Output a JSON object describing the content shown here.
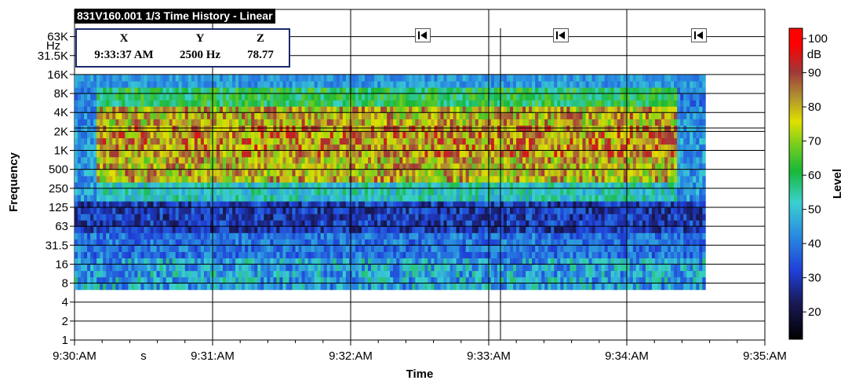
{
  "title": "831V160.001 1/3 Time History - Linear",
  "cursor": {
    "x_header": "X",
    "y_header": "Y",
    "z_header": "Z",
    "x_value": "9:33:37 AM",
    "y_value": "2500 Hz",
    "z_value": "78.77"
  },
  "markers": [
    {
      "name": "marker-1",
      "time": "9:32:30"
    },
    {
      "name": "marker-2",
      "time": "9:33:30"
    },
    {
      "name": "marker-3",
      "time": "9:34:30"
    }
  ],
  "chart_data": {
    "type": "heatmap",
    "title": "831V160.001 1/3 Time History - Linear",
    "xlabel": "Time",
    "ylabel": "Frequency",
    "colorbar_label": "Level",
    "colorbar_unit": "dB",
    "x_ticks": [
      "9:30:AM",
      "9:31:AM",
      "9:32:AM",
      "9:33:AM",
      "9:34:AM",
      "9:35:AM"
    ],
    "x_unit_label": "s",
    "y_ticks": [
      "1",
      "2",
      "4",
      "8",
      "16",
      "31.5",
      "63",
      "125",
      "250",
      "500",
      "1K",
      "2K",
      "4K",
      "8K",
      "16K",
      "31.5K",
      "63K"
    ],
    "y_unit_label": "Hz",
    "colorbar_ticks": [
      "20",
      "30",
      "40",
      "50",
      "60",
      "70",
      "80",
      "90",
      "100"
    ],
    "color_range": [
      12,
      103
    ],
    "data_time_range_min": [
      0.0,
      4.57
    ],
    "data_freq_range_hz": [
      6.3,
      16000
    ],
    "cursor": {
      "time": "9:33:37 AM",
      "frequency_hz": 2500,
      "level_db": 78.77
    },
    "bands": [
      {
        "freq_hz": "6.3-20",
        "level_db": [
          38,
          58
        ],
        "description_time": "whole record"
      },
      {
        "freq_hz": "20-50",
        "level_db": [
          32,
          45
        ],
        "description_time": "whole record"
      },
      {
        "freq_hz": "50-160",
        "level_db": [
          22,
          40
        ],
        "description_time": "whole record"
      },
      {
        "freq_hz": "160-315",
        "level_db": [
          38,
          55
        ],
        "description_time": "whole record"
      },
      {
        "freq_hz": "315-5000",
        "level_db": [
          65,
          92
        ],
        "description_time": "9:30:10 to 9:34:22"
      },
      {
        "freq_hz": "5000-10000",
        "level_db": [
          52,
          68
        ],
        "description_time": "9:30:10 to 9:34:22"
      },
      {
        "freq_hz": "10000-16000",
        "level_db": [
          40,
          52
        ],
        "description_time": "whole record"
      }
    ]
  }
}
